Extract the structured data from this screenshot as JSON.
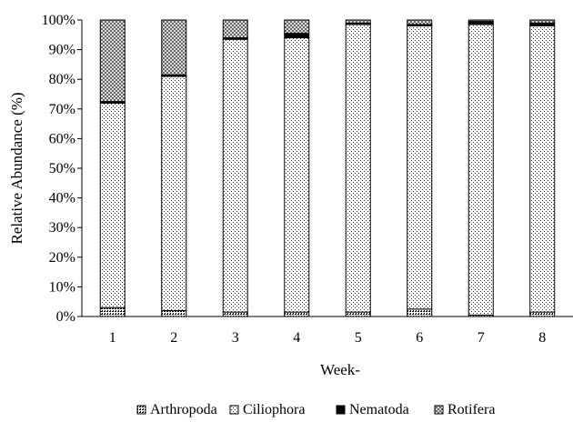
{
  "chart_data": {
    "type": "bar",
    "stacked": true,
    "normalized": true,
    "title": "",
    "xlabel": "Week-",
    "ylabel": "Relative Abundance (%)",
    "ylim": [
      0,
      100
    ],
    "y_ticks": [
      "0%",
      "10%",
      "20%",
      "30%",
      "40%",
      "50%",
      "60%",
      "70%",
      "80%",
      "90%",
      "100%"
    ],
    "categories": [
      "1",
      "2",
      "3",
      "4",
      "5",
      "6",
      "7",
      "8"
    ],
    "grid": false,
    "legend_position": "bottom",
    "series": [
      {
        "name": "Arthropoda",
        "pattern": "dense-dots",
        "values": [
          3,
          2,
          1.5,
          1.5,
          1.5,
          2.5,
          0.5,
          1.5
        ]
      },
      {
        "name": "Ciliophora",
        "pattern": "sparse-dots",
        "values": [
          69,
          79,
          92,
          92.5,
          97,
          95.5,
          98,
          96.5
        ]
      },
      {
        "name": "Nematoda",
        "pattern": "solid",
        "values": [
          0.5,
          0.5,
          0.5,
          1.5,
          0.5,
          0.5,
          1,
          1
        ]
      },
      {
        "name": "Rotifera",
        "pattern": "crosshatch",
        "values": [
          27.5,
          18.5,
          6,
          4.5,
          1,
          1.5,
          0.5,
          1
        ]
      }
    ]
  }
}
